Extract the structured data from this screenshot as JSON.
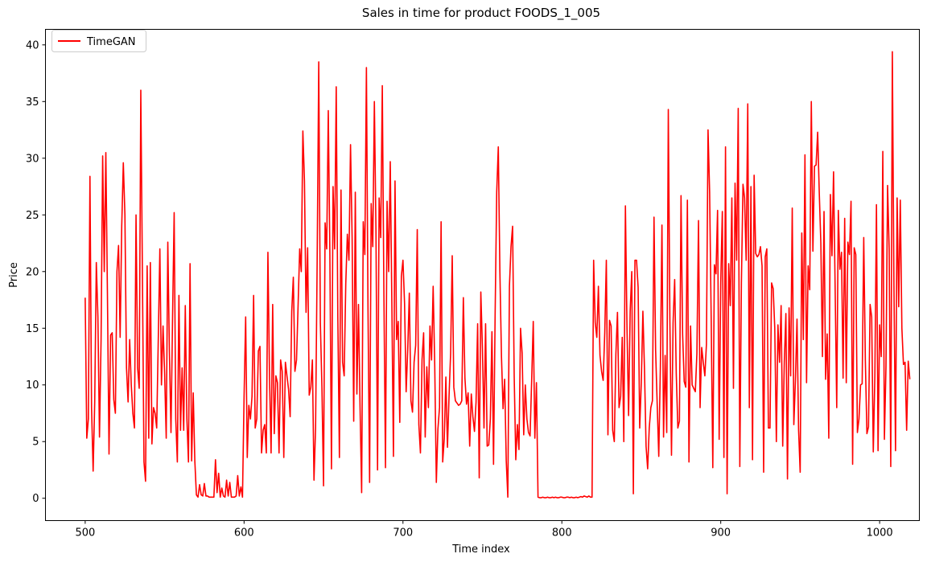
{
  "chart_data": {
    "type": "line",
    "title": "Sales in time for product FOODS_1_005",
    "xlabel": "Time index",
    "ylabel": "Price",
    "xlim": [
      475,
      1025
    ],
    "ylim": [
      -1.97,
      41.37
    ],
    "xticks": [
      500,
      600,
      700,
      800,
      900,
      1000
    ],
    "yticks": [
      0,
      5,
      10,
      15,
      20,
      25,
      30,
      35,
      40
    ],
    "grid": false,
    "legend_position": "top-left",
    "series": [
      {
        "name": "TimeGAN",
        "color": "#ff0000",
        "x_start": 500,
        "x_step": 1,
        "values": [
          17.7,
          5.3,
          7.0,
          28.4,
          8.0,
          2.4,
          8.5,
          20.8,
          16.0,
          5.4,
          14.0,
          30.2,
          20.0,
          30.5,
          18.0,
          3.9,
          14.4,
          14.6,
          8.7,
          7.5,
          20.0,
          22.3,
          14.2,
          24.0,
          29.6,
          25.0,
          11.5,
          8.5,
          14.0,
          10.0,
          7.5,
          6.2,
          25.0,
          11.5,
          9.7,
          36.0,
          20.0,
          3.2,
          1.5,
          20.5,
          5.3,
          20.8,
          4.8,
          8.0,
          7.5,
          6.2,
          14.0,
          22.0,
          10.0,
          15.2,
          11.0,
          5.3,
          22.6,
          13.0,
          5.8,
          16.0,
          25.2,
          7.0,
          3.2,
          17.9,
          6.0,
          11.5,
          6.0,
          17.0,
          7.0,
          3.2,
          20.7,
          3.3,
          9.3,
          3.3,
          0.3,
          0.1,
          1.2,
          0.3,
          0.2,
          1.3,
          0.2,
          0.2,
          0.1,
          0.1,
          0.1,
          0.1,
          3.4,
          0.5,
          2.2,
          0.1,
          0.9,
          0.2,
          0.1,
          1.6,
          0.2,
          1.4,
          0.1,
          0.1,
          0.1,
          0.2,
          2.0,
          0.2,
          1.0,
          0.1,
          9.0,
          16.0,
          3.6,
          8.2,
          7.0,
          9.0,
          17.9,
          6.2,
          7.0,
          13.0,
          13.4,
          4.0,
          6.0,
          6.5,
          4.0,
          21.7,
          10.8,
          4.0,
          17.1,
          5.7,
          10.8,
          10.2,
          4.0,
          12.2,
          11.2,
          3.6,
          12.0,
          10.8,
          9.6,
          7.2,
          16.5,
          19.5,
          11.2,
          12.2,
          17.0,
          22.0,
          20.0,
          32.4,
          28.0,
          16.4,
          22.1,
          9.1,
          9.8,
          12.2,
          1.6,
          6.2,
          21.0,
          38.5,
          15.5,
          9.8,
          1.1,
          24.3,
          22.0,
          34.2,
          21.5,
          2.6,
          27.5,
          22.0,
          36.3,
          16.0,
          3.6,
          27.2,
          12.0,
          10.8,
          18.9,
          23.3,
          21.0,
          31.2,
          23.0,
          6.8,
          27.0,
          9.2,
          17.1,
          8.0,
          0.5,
          24.4,
          21.5,
          38.0,
          16.6,
          1.4,
          26.0,
          22.2,
          35.0,
          23.6,
          2.5,
          26.5,
          23.0,
          36.4,
          18.0,
          2.7,
          26.2,
          20.0,
          29.7,
          17.3,
          3.7,
          28.0,
          14.0,
          15.6,
          6.7,
          19.6,
          21.0,
          17.2,
          9.4,
          13.1,
          18.1,
          8.6,
          7.6,
          12.0,
          13.5,
          23.7,
          6.5,
          4.0,
          12.2,
          14.6,
          5.4,
          11.6,
          8.0,
          15.2,
          12.2,
          18.7,
          11.7,
          1.4,
          6.1,
          8.0,
          24.4,
          3.2,
          5.3,
          10.7,
          4.5,
          9.0,
          12.8,
          21.4,
          9.8,
          8.6,
          8.4,
          8.2,
          8.3,
          8.6,
          17.7,
          10.6,
          8.3,
          9.3,
          4.6,
          9.2,
          7.2,
          5.9,
          8.5,
          15.4,
          1.8,
          18.2,
          13.3,
          6.2,
          15.4,
          4.6,
          4.7,
          7.0,
          14.7,
          3.0,
          16.2,
          27.0,
          31.0,
          20.0,
          12.5,
          7.9,
          10.5,
          3.3,
          0.1,
          18.7,
          22.2,
          24.0,
          10.8,
          3.4,
          6.5,
          4.3,
          15.0,
          12.8,
          5.6,
          10.0,
          7.0,
          5.8,
          5.5,
          10.4,
          15.6,
          5.3,
          10.2,
          0.1,
          0.05,
          0.05,
          0.1,
          0.05,
          0.05,
          0.1,
          0.05,
          0.05,
          0.1,
          0.05,
          0.1,
          0.05,
          0.05,
          0.1,
          0.1,
          0.05,
          0.05,
          0.1,
          0.1,
          0.05,
          0.1,
          0.05,
          0.05,
          0.1,
          0.05,
          0.1,
          0.15,
          0.1,
          0.2,
          0.15,
          0.1,
          0.2,
          0.1,
          0.1,
          21.0,
          15.5,
          14.2,
          18.7,
          12.6,
          11.2,
          10.4,
          14.6,
          21.0,
          5.6,
          15.7,
          15.2,
          6.0,
          5.0,
          12.7,
          16.4,
          8.0,
          9.0,
          14.2,
          5.0,
          25.8,
          15.0,
          7.3,
          16.5,
          20.0,
          0.4,
          21.0,
          21.0,
          18.6,
          6.2,
          10.2,
          16.5,
          11.4,
          4.6,
          2.6,
          6.2,
          8.0,
          8.6,
          24.8,
          13.1,
          8.3,
          3.7,
          11.6,
          24.1,
          5.4,
          12.6,
          5.8,
          34.3,
          15.6,
          3.8,
          15.5,
          19.3,
          11.0,
          6.2,
          6.8,
          26.7,
          14.5,
          10.3,
          9.8,
          26.3,
          3.2,
          15.2,
          10.0,
          9.7,
          9.4,
          12.8,
          24.5,
          8.0,
          13.3,
          12.0,
          10.8,
          13.6,
          32.5,
          27.0,
          15.7,
          2.7,
          20.6,
          19.8,
          25.4,
          5.2,
          19.0,
          25.3,
          3.6,
          31.0,
          0.4,
          20.7,
          17.0,
          26.5,
          9.7,
          27.8,
          21.0,
          34.4,
          2.8,
          19.0,
          27.7,
          26.5,
          21.0,
          34.8,
          8.0,
          27.5,
          3.4,
          28.5,
          21.6,
          21.3,
          21.5,
          22.2,
          20.5,
          2.3,
          21.3,
          22.0,
          6.2,
          6.2,
          19.0,
          18.5,
          15.0,
          5.0,
          15.3,
          12.0,
          17.0,
          4.6,
          12.0,
          16.3,
          1.7,
          16.8,
          10.8,
          25.6,
          6.5,
          10.4,
          15.8,
          6.0,
          2.3,
          23.4,
          14.0,
          30.3,
          10.2,
          20.5,
          18.4,
          35.0,
          21.8,
          29.3,
          29.4,
          32.3,
          27.0,
          22.5,
          12.5,
          25.3,
          10.5,
          14.5,
          5.3,
          26.8,
          21.4,
          28.8,
          18.5,
          8.0,
          25.4,
          20.2,
          21.7,
          10.6,
          24.7,
          10.2,
          22.6,
          21.5,
          26.2,
          3.0,
          22.1,
          21.5,
          5.8,
          7.0,
          10.0,
          10.1,
          23.0,
          12.2,
          5.7,
          6.3,
          17.1,
          16.0,
          4.1,
          10.8,
          25.9,
          4.2,
          15.3,
          12.5,
          30.6,
          5.2,
          11.6,
          27.6,
          22.0,
          2.8,
          39.4,
          18.8,
          4.2,
          26.5,
          16.9,
          26.3,
          15.0,
          11.8,
          12.0,
          6.0,
          12.1,
          10.5
        ]
      }
    ]
  }
}
